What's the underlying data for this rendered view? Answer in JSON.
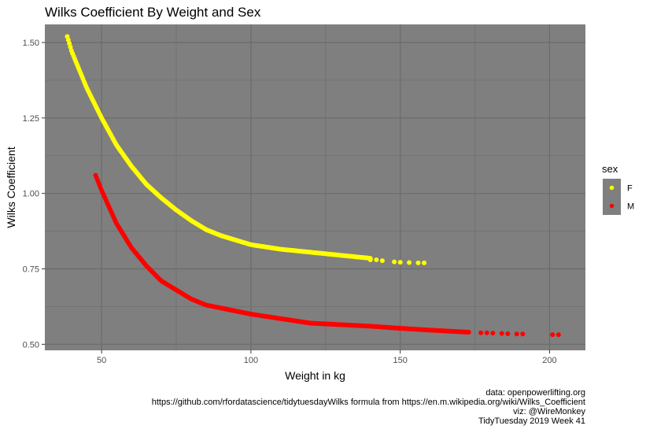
{
  "chart_data": {
    "type": "scatter",
    "title": "Wilks Coefficient By Weight and Sex",
    "xlabel": "Weight in kg",
    "ylabel": "Wilks Coefficient",
    "xlim": [
      31,
      212
    ],
    "ylim": [
      0.48,
      1.56
    ],
    "x_ticks": [
      50,
      100,
      150,
      200
    ],
    "x_tick_labels": [
      "50",
      "100",
      "150",
      "200"
    ],
    "y_ticks": [
      0.5,
      0.75,
      1.0,
      1.25,
      1.5
    ],
    "y_tick_labels": [
      "0.50",
      "0.75",
      "1.00",
      "1.25",
      "1.50"
    ],
    "grid": true,
    "legend": {
      "title": "sex",
      "placement": "right",
      "entries": [
        "F",
        "M"
      ]
    },
    "series": [
      {
        "name": "F",
        "color": "#ffff00",
        "x_range": [
          38.5,
          158
        ],
        "points": [
          [
            38.5,
            1.52
          ],
          [
            40,
            1.47
          ],
          [
            45,
            1.35
          ],
          [
            50,
            1.25
          ],
          [
            55,
            1.16
          ],
          [
            60,
            1.09
          ],
          [
            65,
            1.03
          ],
          [
            70,
            0.985
          ],
          [
            75,
            0.945
          ],
          [
            80,
            0.91
          ],
          [
            85,
            0.88
          ],
          [
            90,
            0.86
          ],
          [
            95,
            0.845
          ],
          [
            100,
            0.83
          ],
          [
            110,
            0.815
          ],
          [
            120,
            0.805
          ],
          [
            130,
            0.795
          ],
          [
            140,
            0.785
          ],
          [
            150,
            0.775
          ],
          [
            158,
            0.77
          ]
        ],
        "sparse_points": [
          [
            140,
            0.78
          ],
          [
            142,
            0.78
          ],
          [
            144,
            0.777
          ],
          [
            148,
            0.773
          ],
          [
            150,
            0.772
          ],
          [
            153,
            0.771
          ],
          [
            156,
            0.77
          ],
          [
            158,
            0.77
          ]
        ]
      },
      {
        "name": "M",
        "color": "#ff0000",
        "x_range": [
          48,
          173
        ],
        "points": [
          [
            48,
            1.06
          ],
          [
            50,
            1.01
          ],
          [
            55,
            0.9
          ],
          [
            60,
            0.82
          ],
          [
            65,
            0.76
          ],
          [
            70,
            0.71
          ],
          [
            75,
            0.68
          ],
          [
            80,
            0.65
          ],
          [
            85,
            0.63
          ],
          [
            90,
            0.62
          ],
          [
            95,
            0.61
          ],
          [
            100,
            0.6
          ],
          [
            110,
            0.585
          ],
          [
            120,
            0.57
          ],
          [
            130,
            0.565
          ],
          [
            140,
            0.56
          ],
          [
            150,
            0.553
          ],
          [
            160,
            0.547
          ],
          [
            173,
            0.54
          ]
        ],
        "sparse_points": [
          [
            177,
            0.538
          ],
          [
            179,
            0.538
          ],
          [
            181,
            0.537
          ],
          [
            184,
            0.536
          ],
          [
            186,
            0.535
          ],
          [
            189,
            0.534
          ],
          [
            191,
            0.534
          ],
          [
            201,
            0.532
          ],
          [
            203,
            0.532
          ]
        ]
      }
    ]
  },
  "caption_lines": [
    "data: openpowerlifting.org",
    "https://github.com/rfordatascience/tidytuesdayWilks formula from https://en.m.wikipedia.org/wiki/Wilks_Coefficient",
    "viz: @WireMonkey",
    "TidyTuesday 2019 Week 41"
  ],
  "colors": {
    "panel_background": "#7f7f7f",
    "grid": "#6b6b6b",
    "female": "#ffff00",
    "male": "#ff0000"
  }
}
